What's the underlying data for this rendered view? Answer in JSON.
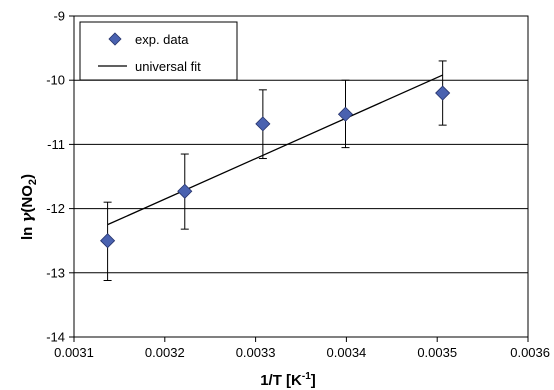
{
  "chart_data": {
    "type": "scatter",
    "xlabel": "1/T [K⁻¹]",
    "ylabel": "ln γ(NO₂)",
    "xlim": [
      0.0031,
      0.0036
    ],
    "ylim": [
      -14,
      -9
    ],
    "x_ticks": [
      "0.0031",
      "0.0032",
      "0.0033",
      "0.0034",
      "0.0035",
      "0.0036"
    ],
    "y_ticks": [
      "-9",
      "-10",
      "-11",
      "-12",
      "-13",
      "-14"
    ],
    "y_tick_values": [
      -9,
      -10,
      -11,
      -12,
      -13,
      -14
    ],
    "x_tick_values": [
      0.0031,
      0.0032,
      0.0033,
      0.0034,
      0.0035,
      0.0036
    ],
    "gridlines_y": [
      -10,
      -11,
      -12,
      -13
    ],
    "legend_position": "top-left",
    "series": [
      {
        "name": "exp. data",
        "kind": "points",
        "color": "#4a62b0",
        "marker": "diamond",
        "x": [
          0.003137,
          0.003222,
          0.003308,
          0.003399,
          0.003506
        ],
        "y": [
          -12.5,
          -11.73,
          -10.68,
          -10.53,
          -10.2
        ],
        "error_low": [
          -13.12,
          -12.32,
          -11.22,
          -11.05,
          -10.7
        ],
        "error_high": [
          -11.9,
          -11.15,
          -10.15,
          -10.0,
          -9.7
        ]
      },
      {
        "name": "universal fit",
        "kind": "line",
        "color": "#000000",
        "x": [
          0.003137,
          0.003506
        ],
        "y": [
          -12.25,
          -9.92
        ]
      }
    ]
  }
}
